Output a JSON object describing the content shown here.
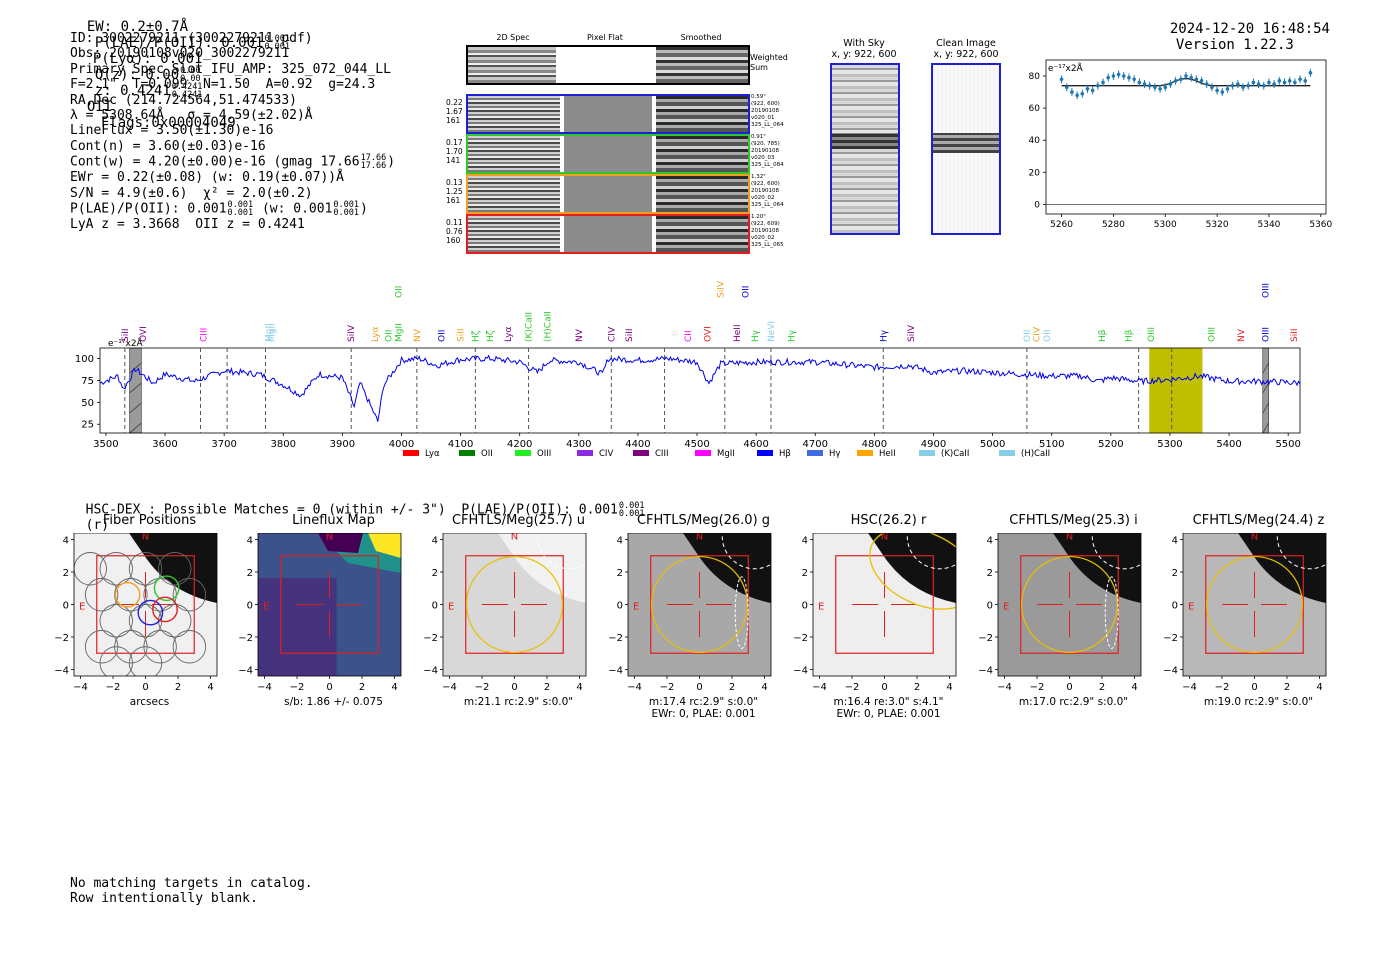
{
  "header": {
    "ew": "EW: 0.2±0.7Å",
    "plae_label": "P(LAE)/P(OII): 0.001",
    "plae_sup": "0.001",
    "plae_sub": "0.001",
    "plya": "P(Lyα): 0.001",
    "qz_label": "Q(z): 0.00",
    "qz_sup": "0.00",
    "qz_sub": "0.00",
    "z_label": "z: 0.4241",
    "z_sup": "0.4241",
    "z_sub": "0.4241",
    "z_line": "OII",
    "flags": "Flags:0x00004049",
    "datetime": "2024-12-20 16:48:54",
    "version": "Version 1.22.3"
  },
  "info": {
    "id": "ID: 3002279211 (3002279211.pdf)",
    "obs": "Obs: 20190108v020_3002279211",
    "primary": "Primary Spec_Slot_IFU_AMP: 325_072_044_LL",
    "fiber": "F=2.1\"  T=0.099  N=1.50  A=0.92  g=24.3",
    "radec": "RA,Dec (214.724564,51.474533)",
    "lambda": "λ = 5308.64Å   σ = 4.59(±2.02)Å",
    "lineflux": "LineFlux = 3.50(±1.30)e-16",
    "contn": "Cont(n) = 3.60(±0.03)e-16",
    "contw": "Cont(w) = 4.20(±0.00)e-16 (gmag 17.66",
    "contw_sup": "17.66",
    "contw_sub": "17.66",
    "contw_end": ")",
    "ewr": "EWr = 0.22(±0.08) (w: 0.19(±0.07))Å",
    "sn": "S/N = 4.9(±0.6)  χ² = 2.0(±0.2)",
    "plae": "P(LAE)/P(OII): 0.001",
    "plae_sup": "0.001",
    "plae_sub": "0.001",
    "plae_w": "(w: 0.001",
    "plae_w_sup": "0.001",
    "plae_w_sub": "0.001",
    "plae_w_end": ")",
    "lyaz": "LyA z = 3.3668  OII z = 0.4241"
  },
  "spec2d": {
    "col_titles": [
      "2D Spec",
      "Pixel Flat",
      "Smoothed"
    ],
    "weighted_label": "Weighted Sum",
    "rows": [
      {
        "color": "#1f1fd6",
        "stats": [
          "0.22",
          "1.67",
          "161"
        ],
        "notes": [
          "0.59\"",
          "(922, 600)",
          "20190108",
          "v020_01",
          "325_LL_064"
        ]
      },
      {
        "color": "#2ec82e",
        "stats": [
          "0.17",
          "1.70",
          "141"
        ],
        "notes": [
          "0.91\"",
          "(920, 785)",
          "20190108",
          "v020_03",
          "325_LL_084"
        ]
      },
      {
        "color": "#f0a020",
        "stats": [
          "0.13",
          "1.25",
          "161"
        ],
        "notes": [
          "1.32\"",
          "(922, 600)",
          "20190108",
          "v020_02",
          "325_LL_064"
        ]
      },
      {
        "color": "#e02020",
        "stats": [
          "0.11",
          "0.76",
          "160"
        ],
        "notes": [
          "1.20\"",
          "(922, 609)",
          "20190108",
          "v020_02",
          "325_LL_065"
        ]
      }
    ]
  },
  "cutouts": {
    "with_sky_title": "With Sky",
    "with_sky_xy": "x, y: 922, 600",
    "clean_title": "Clean Image",
    "clean_xy": "x, y: 922, 600"
  },
  "colors": {
    "accent_blue": "#0000ee",
    "fit_point": "#1f77b4",
    "band_yellow": "#bfbf00",
    "red": "#e02020"
  },
  "chart_data": [
    {
      "type": "scatter",
      "title": "",
      "ylabel": "e⁻¹⁷x2Å",
      "x": [
        5260,
        5262,
        5264,
        5266,
        5268,
        5270,
        5272,
        5274,
        5276,
        5278,
        5280,
        5282,
        5284,
        5286,
        5288,
        5290,
        5292,
        5294,
        5296,
        5298,
        5300,
        5302,
        5304,
        5306,
        5308,
        5310,
        5312,
        5314,
        5316,
        5318,
        5320,
        5322,
        5324,
        5326,
        5328,
        5330,
        5332,
        5334,
        5336,
        5338,
        5340,
        5342,
        5344,
        5346,
        5348,
        5350,
        5352,
        5354,
        5356
      ],
      "y": [
        78,
        73,
        70,
        68,
        69,
        72,
        71,
        74,
        76,
        79,
        80,
        81,
        80,
        79,
        78,
        76,
        75,
        74,
        73,
        72,
        73,
        75,
        77,
        78,
        80,
        79,
        78,
        77,
        75,
        73,
        71,
        70,
        72,
        74,
        75,
        73,
        74,
        76,
        75,
        74,
        76,
        75,
        77,
        76,
        77,
        76,
        78,
        77,
        82
      ],
      "fit": [
        74,
        74,
        74,
        74,
        74,
        74,
        74,
        74,
        74,
        74,
        74,
        74,
        74,
        74,
        74,
        74,
        74,
        74,
        74,
        74,
        74.5,
        75.5,
        77,
        78,
        78.5,
        78,
        77,
        75.5,
        74.5,
        74,
        74,
        74,
        74,
        74,
        74,
        74,
        74,
        74,
        74,
        74,
        74,
        74,
        74,
        74,
        74,
        74,
        74,
        74,
        74
      ],
      "xlim": [
        5254,
        5362
      ],
      "ylim": [
        -6,
        90
      ],
      "xticks": [
        5260,
        5280,
        5300,
        5320,
        5340,
        5360
      ],
      "yticks": [
        0,
        20,
        40,
        60,
        80
      ]
    },
    {
      "type": "line",
      "title": "",
      "ylabel": "e⁻¹⁷x2Å",
      "xlim": [
        3490,
        5520
      ],
      "ylim": [
        15,
        112
      ],
      "xticks": [
        3500,
        3600,
        3700,
        3800,
        3900,
        4000,
        4100,
        4200,
        4300,
        4400,
        4500,
        4600,
        4700,
        4800,
        4900,
        5000,
        5100,
        5200,
        5300,
        5400,
        5500
      ],
      "yticks": [
        25,
        50,
        75,
        100
      ],
      "anchors": [
        [
          3490,
          72
        ],
        [
          3520,
          80
        ],
        [
          3530,
          65
        ],
        [
          3550,
          88
        ],
        [
          3580,
          72
        ],
        [
          3600,
          82
        ],
        [
          3650,
          74
        ],
        [
          3700,
          86
        ],
        [
          3760,
          82
        ],
        [
          3800,
          70
        ],
        [
          3830,
          58
        ],
        [
          3860,
          82
        ],
        [
          3900,
          78
        ],
        [
          3920,
          45
        ],
        [
          3930,
          72
        ],
        [
          3960,
          28
        ],
        [
          3970,
          70
        ],
        [
          4000,
          98
        ],
        [
          4030,
          100
        ],
        [
          4060,
          92
        ],
        [
          4100,
          99
        ],
        [
          4150,
          100
        ],
        [
          4200,
          96
        ],
        [
          4230,
          84
        ],
        [
          4250,
          98
        ],
        [
          4300,
          96
        ],
        [
          4340,
          82
        ],
        [
          4350,
          100
        ],
        [
          4400,
          98
        ],
        [
          4450,
          100
        ],
        [
          4500,
          96
        ],
        [
          4520,
          72
        ],
        [
          4540,
          94
        ],
        [
          4600,
          96
        ],
        [
          4700,
          96
        ],
        [
          4800,
          90
        ],
        [
          4860,
          92
        ],
        [
          4900,
          84
        ],
        [
          4950,
          86
        ],
        [
          5000,
          84
        ],
        [
          5050,
          82
        ],
        [
          5100,
          80
        ],
        [
          5150,
          80
        ],
        [
          5180,
          74
        ],
        [
          5200,
          78
        ],
        [
          5250,
          74
        ],
        [
          5300,
          76
        ],
        [
          5350,
          80
        ],
        [
          5400,
          74
        ],
        [
          5450,
          74
        ],
        [
          5520,
          72
        ]
      ],
      "series_name": "spectrum",
      "series_color": "#0000ee",
      "dashed_lines": [
        3532,
        3660,
        3705,
        3770,
        3915,
        4026,
        4125,
        4215,
        4355,
        4445,
        4547,
        4625,
        4815,
        5058,
        5247,
        5303
      ],
      "highlight_band": [
        5265,
        5355
      ],
      "hatched_bands": [
        [
          3540,
          3560
        ],
        [
          5457,
          5467
        ]
      ],
      "line_labels": [
        {
          "x": 3532,
          "text": "SiII",
          "color": "#800080",
          "row": 1
        },
        {
          "x": 3563,
          "text": "OVI",
          "color": "#800080",
          "row": 1
        },
        {
          "x": 3665,
          "text": "CIII",
          "color": "#ff00ff",
          "row": 1
        },
        {
          "x": 3775,
          "text": "MgII",
          "color": "#87ceeb",
          "row": 1
        },
        {
          "x": 3780,
          "text": "MgII",
          "color": "#87ceeb",
          "row": 1
        },
        {
          "x": 3915,
          "text": "SiIV",
          "color": "#800080",
          "row": 1
        },
        {
          "x": 3955,
          "text": "Lyα",
          "color": "#f0a020",
          "row": 1
        },
        {
          "x": 3978,
          "text": "OII",
          "color": "#2ec82e",
          "row": 1
        },
        {
          "x": 3995,
          "text": "MgII",
          "color": "#2ec82e",
          "row": 1
        },
        {
          "x": 4026,
          "text": "NV",
          "color": "#f0a020",
          "row": 1
        },
        {
          "x": 4068,
          "text": "OII",
          "color": "#0000cc",
          "row": 1
        },
        {
          "x": 4100,
          "text": "SiII",
          "color": "#f0a020",
          "row": 1
        },
        {
          "x": 4125,
          "text": "Hζ",
          "color": "#2ec82e",
          "row": 1
        },
        {
          "x": 4150,
          "text": "Hζ",
          "color": "#2ec82e",
          "row": 1
        },
        {
          "x": 4180,
          "text": "Lyα",
          "color": "#800080",
          "row": 1
        },
        {
          "x": 4215,
          "text": "(K)CaII",
          "color": "#2ec82e",
          "row": 1
        },
        {
          "x": 4247,
          "text": "(H)CaII",
          "color": "#2ec82e",
          "row": 1
        },
        {
          "x": 4300,
          "text": "NV",
          "color": "#800080",
          "row": 1
        },
        {
          "x": 4355,
          "text": "CIV",
          "color": "#800080",
          "row": 1
        },
        {
          "x": 4385,
          "text": "SiII",
          "color": "#800080",
          "row": 1
        },
        {
          "x": 4485,
          "text": "CII",
          "color": "#ff00ff",
          "row": 1
        },
        {
          "x": 4518,
          "text": "OVI",
          "color": "#e02020",
          "row": 1
        },
        {
          "x": 4568,
          "text": "HeII",
          "color": "#800080",
          "row": 1
        },
        {
          "x": 4598,
          "text": "Hγ",
          "color": "#2ec82e",
          "row": 1
        },
        {
          "x": 4625,
          "text": "NeVI",
          "color": "#87ceeb",
          "row": 1
        },
        {
          "x": 4660,
          "text": "Hγ",
          "color": "#2ec82e",
          "row": 1
        },
        {
          "x": 4815,
          "text": "Hγ",
          "color": "#0000cc",
          "row": 1
        },
        {
          "x": 4862,
          "text": "SiIV",
          "color": "#800080",
          "row": 1
        },
        {
          "x": 5058,
          "text": "OII",
          "color": "#87ceeb",
          "row": 1
        },
        {
          "x": 5074,
          "text": "CIV",
          "color": "#f0a020",
          "row": 1
        },
        {
          "x": 5092,
          "text": "OII",
          "color": "#87ceeb",
          "row": 1
        },
        {
          "x": 5185,
          "text": "Hβ",
          "color": "#2ec82e",
          "row": 1
        },
        {
          "x": 5230,
          "text": "Hβ",
          "color": "#2ec82e",
          "row": 1
        },
        {
          "x": 5268,
          "text": "OIII",
          "color": "#2ec82e",
          "row": 1
        },
        {
          "x": 5370,
          "text": "OIII",
          "color": "#2ec82e",
          "row": 1
        },
        {
          "x": 5420,
          "text": "NV",
          "color": "#e02020",
          "row": 1
        },
        {
          "x": 5462,
          "text": "OIII",
          "color": "#0000cc",
          "row": 1
        },
        {
          "x": 5510,
          "text": "SiII",
          "color": "#e02020",
          "row": 1
        },
        {
          "x": 3995,
          "text": "OII",
          "color": "#2ec82e",
          "row": 2
        },
        {
          "x": 4540,
          "text": "SiIV",
          "color": "#f0a020",
          "row": 2
        },
        {
          "x": 4582,
          "text": "OII",
          "color": "#0000cc",
          "row": 2
        },
        {
          "x": 5462,
          "text": "OIII",
          "color": "#0000cc",
          "row": 2
        }
      ],
      "legend": [
        {
          "label": "Lyα",
          "color": "#ff0000"
        },
        {
          "label": "OII",
          "color": "#008000"
        },
        {
          "label": "OIII",
          "color": "#22ee22"
        },
        {
          "label": "CIV",
          "color": "#8a2be2"
        },
        {
          "label": "CIII",
          "color": "#800080"
        },
        {
          "label": "MgII",
          "color": "#ff00ff"
        },
        {
          "label": "Hβ",
          "color": "#0000ff"
        },
        {
          "label": "Hγ",
          "color": "#4169e1"
        },
        {
          "label": "HeII",
          "color": "#ffa500"
        },
        {
          "label": "(K)CaII",
          "color": "#87ceeb"
        },
        {
          "label": "(H)CaII",
          "color": "#87ceeb"
        }
      ]
    }
  ],
  "hsc": {
    "title": "HSC-DEX : Possible Matches = 0 (within +/- 3\")  P(LAE)/P(OII): 0.001",
    "sup": "0.001",
    "sub": "0.001",
    "suffix": "(r)"
  },
  "panels": [
    {
      "title": "Fiber Positions",
      "caption": [
        "arcsecs"
      ],
      "kind": "fibers"
    },
    {
      "title": "Lineflux Map",
      "caption": [
        "s/b: 1.86 +/- 0.075"
      ],
      "kind": "lineflux"
    },
    {
      "title": "CFHTLS/Meg(25.7) u",
      "caption": [
        "m:21.1 rc:2.9\"  s:0.0\""
      ],
      "kind": "u"
    },
    {
      "title": "CFHTLS/Meg(26.0) g",
      "caption": [
        "m:17.4 rc:2.9\"  s:0.0\"",
        "EWr: 0, PLAE: 0.001"
      ],
      "kind": "g"
    },
    {
      "title": "HSC(26.2) r",
      "caption": [
        "m:16.4  re:3.0\"  s:4.1\"",
        "EWr: 0, PLAE: 0.001"
      ],
      "kind": "r"
    },
    {
      "title": "CFHTLS/Meg(25.3) i",
      "caption": [
        "m:17.0 rc:2.9\"  s:0.0\""
      ],
      "kind": "i"
    },
    {
      "title": "CFHTLS/Meg(24.4) z",
      "caption": [
        "m:19.0 rc:2.9\"  s:0.0\""
      ],
      "kind": "z"
    }
  ],
  "panel_axes": {
    "ticks": [
      "4",
      "2",
      "0",
      "−2",
      "−4"
    ],
    "xticks": [
      "−4",
      "−2",
      "0",
      "2",
      "4"
    ],
    "north": "N",
    "east": "E"
  },
  "footer": {
    "line1": "No matching targets in catalog.",
    "line2": "Row intentionally blank."
  }
}
